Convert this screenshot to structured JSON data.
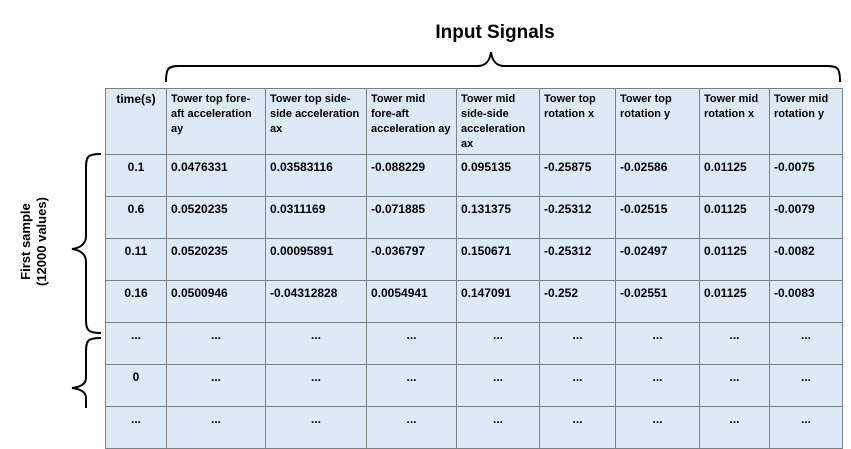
{
  "title": "Input Signals",
  "side_label": {
    "line1": "First sample",
    "line2": "(12000 values)"
  },
  "table": {
    "headers": [
      "time(s)",
      "Tower top fore-aft acceleration ay",
      "Tower top side-side acceleration ax",
      "Tower mid fore-aft acceleration ay",
      "Tower mid side-side acceleration ax",
      "Tower top rotation x",
      "Tower top rotation y",
      "Tower mid rotation x",
      "Tower mid rotation y"
    ],
    "rows": [
      [
        "0.1",
        "0.0476331",
        "0.03583116",
        "-0.088229",
        "0.095135",
        "-0.25875",
        "-0.02586",
        "0.01125",
        "-0.0075"
      ],
      [
        "0.6",
        "0.0520235",
        "0.0311169",
        "-0.071885",
        "0.131375",
        "-0.25312",
        "-0.02515",
        "0.01125",
        "-0.0079"
      ],
      [
        "0.11",
        "0.0520235",
        "0.00095891",
        "-0.036797",
        "0.150671",
        "-0.25312",
        "-0.02497",
        "0.01125",
        "-0.0082"
      ],
      [
        "0.16",
        "0.0500946",
        "-0.04312828",
        "0.0054941",
        "0.147091",
        "-0.252",
        "-0.02551",
        "0.01125",
        "-0.0083"
      ],
      [
        "...",
        "...",
        "...",
        "...",
        "...",
        "...",
        "...",
        "...",
        "..."
      ],
      [
        "0",
        "...",
        "...",
        "...",
        "...",
        "...",
        "...",
        "...",
        "..."
      ],
      [
        "...",
        "...",
        "...",
        "...",
        "...",
        "...",
        "...",
        "...",
        "..."
      ]
    ]
  }
}
